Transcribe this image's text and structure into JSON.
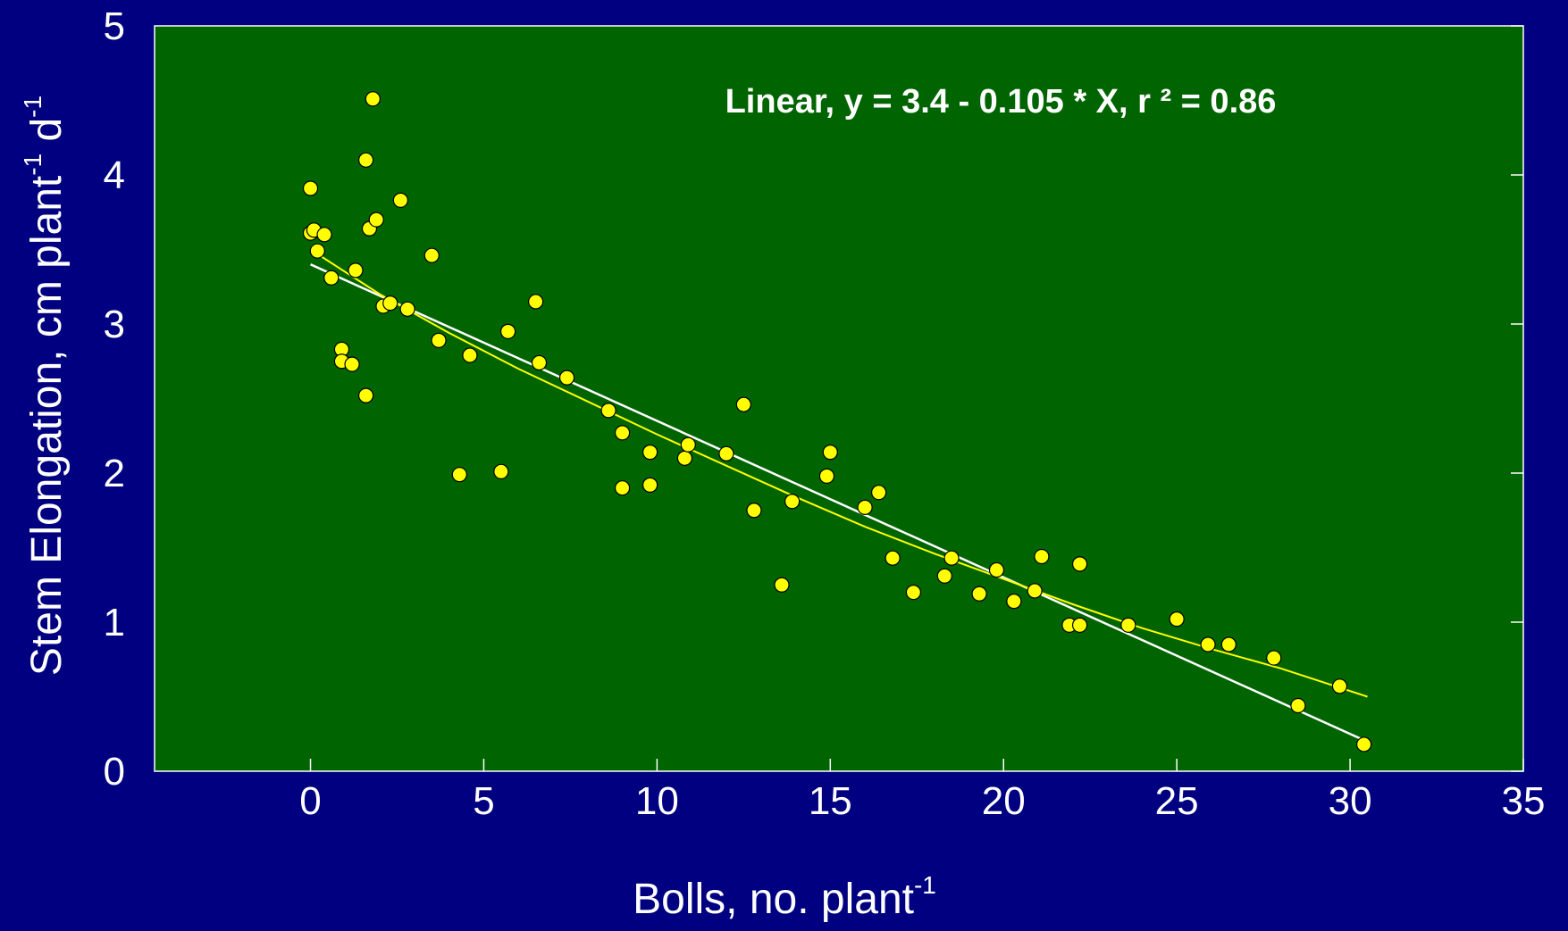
{
  "chart_data": {
    "type": "scatter",
    "annotation": "Linear, y = 3.4 - 0.105 * X, r ² = 0.86",
    "xlabel": {
      "main": "Bolls, no. plant",
      "sup": "-1"
    },
    "ylabel": {
      "main": "Stem Elongation, cm plant",
      "sup1": "-1",
      "mid": " d",
      "sup2": "-1"
    },
    "xlim": [
      -4.5,
      35
    ],
    "ylim": [
      0,
      5
    ],
    "xticks": [
      0,
      5,
      10,
      15,
      20,
      25,
      30,
      35
    ],
    "yticks": [
      0,
      1,
      2,
      3,
      4,
      5
    ],
    "grid": false,
    "colors": {
      "background": "#000080",
      "plot_area": "#006400",
      "points": "#ffff00",
      "linear_fit": "#ffffff",
      "curve_fit": "#ffff00",
      "text": "#ffffff"
    },
    "linear_fit": {
      "intercept": 3.4,
      "slope": -0.105,
      "x_range": [
        0,
        30.5
      ]
    },
    "curve_fit": {
      "x": [
        0,
        2,
        4,
        6,
        8,
        10,
        12,
        14,
        16,
        18,
        20,
        22,
        24,
        26,
        28,
        30.5
      ],
      "y": [
        3.5,
        3.2,
        2.94,
        2.7,
        2.48,
        2.26,
        2.05,
        1.84,
        1.64,
        1.46,
        1.29,
        1.12,
        0.96,
        0.82,
        0.69,
        0.5
      ]
    },
    "points": {
      "x": [
        0,
        0,
        0.1,
        0.2,
        0.4,
        0.6,
        0.9,
        0.9,
        1.2,
        1.3,
        1.6,
        1.6,
        1.7,
        1.8,
        1.9,
        2.1,
        2.3,
        2.6,
        2.8,
        3.5,
        3.7,
        4.3,
        4.6,
        5.5,
        5.7,
        6.5,
        6.6,
        7.4,
        8.6,
        9.0,
        9.0,
        9.8,
        9.8,
        10.8,
        10.9,
        12.0,
        12.5,
        12.8,
        13.6,
        13.9,
        14.9,
        15.0,
        16.0,
        16.4,
        16.8,
        17.4,
        18.3,
        18.5,
        19.3,
        19.8,
        20.3,
        20.9,
        21.1,
        21.9,
        22.2,
        22.2,
        23.6,
        25.0,
        25.9,
        26.5,
        27.8,
        28.5,
        29.7,
        30.4
      ],
      "y": [
        3.91,
        3.61,
        3.63,
        3.49,
        3.6,
        3.31,
        2.83,
        2.75,
        2.73,
        3.36,
        4.1,
        2.52,
        3.64,
        4.51,
        3.7,
        3.12,
        3.14,
        3.83,
        3.1,
        3.46,
        2.89,
        1.99,
        2.79,
        2.01,
        2.95,
        3.15,
        2.74,
        2.64,
        2.42,
        1.9,
        2.27,
        1.92,
        2.14,
        2.1,
        2.19,
        2.13,
        2.46,
        1.75,
        1.25,
        1.81,
        1.98,
        2.14,
        1.77,
        1.87,
        1.43,
        1.2,
        1.31,
        1.43,
        1.19,
        1.35,
        1.14,
        1.21,
        1.44,
        0.98,
        1.39,
        0.98,
        0.98,
        1.02,
        0.85,
        0.85,
        0.76,
        0.44,
        0.57,
        0.18
      ]
    }
  }
}
